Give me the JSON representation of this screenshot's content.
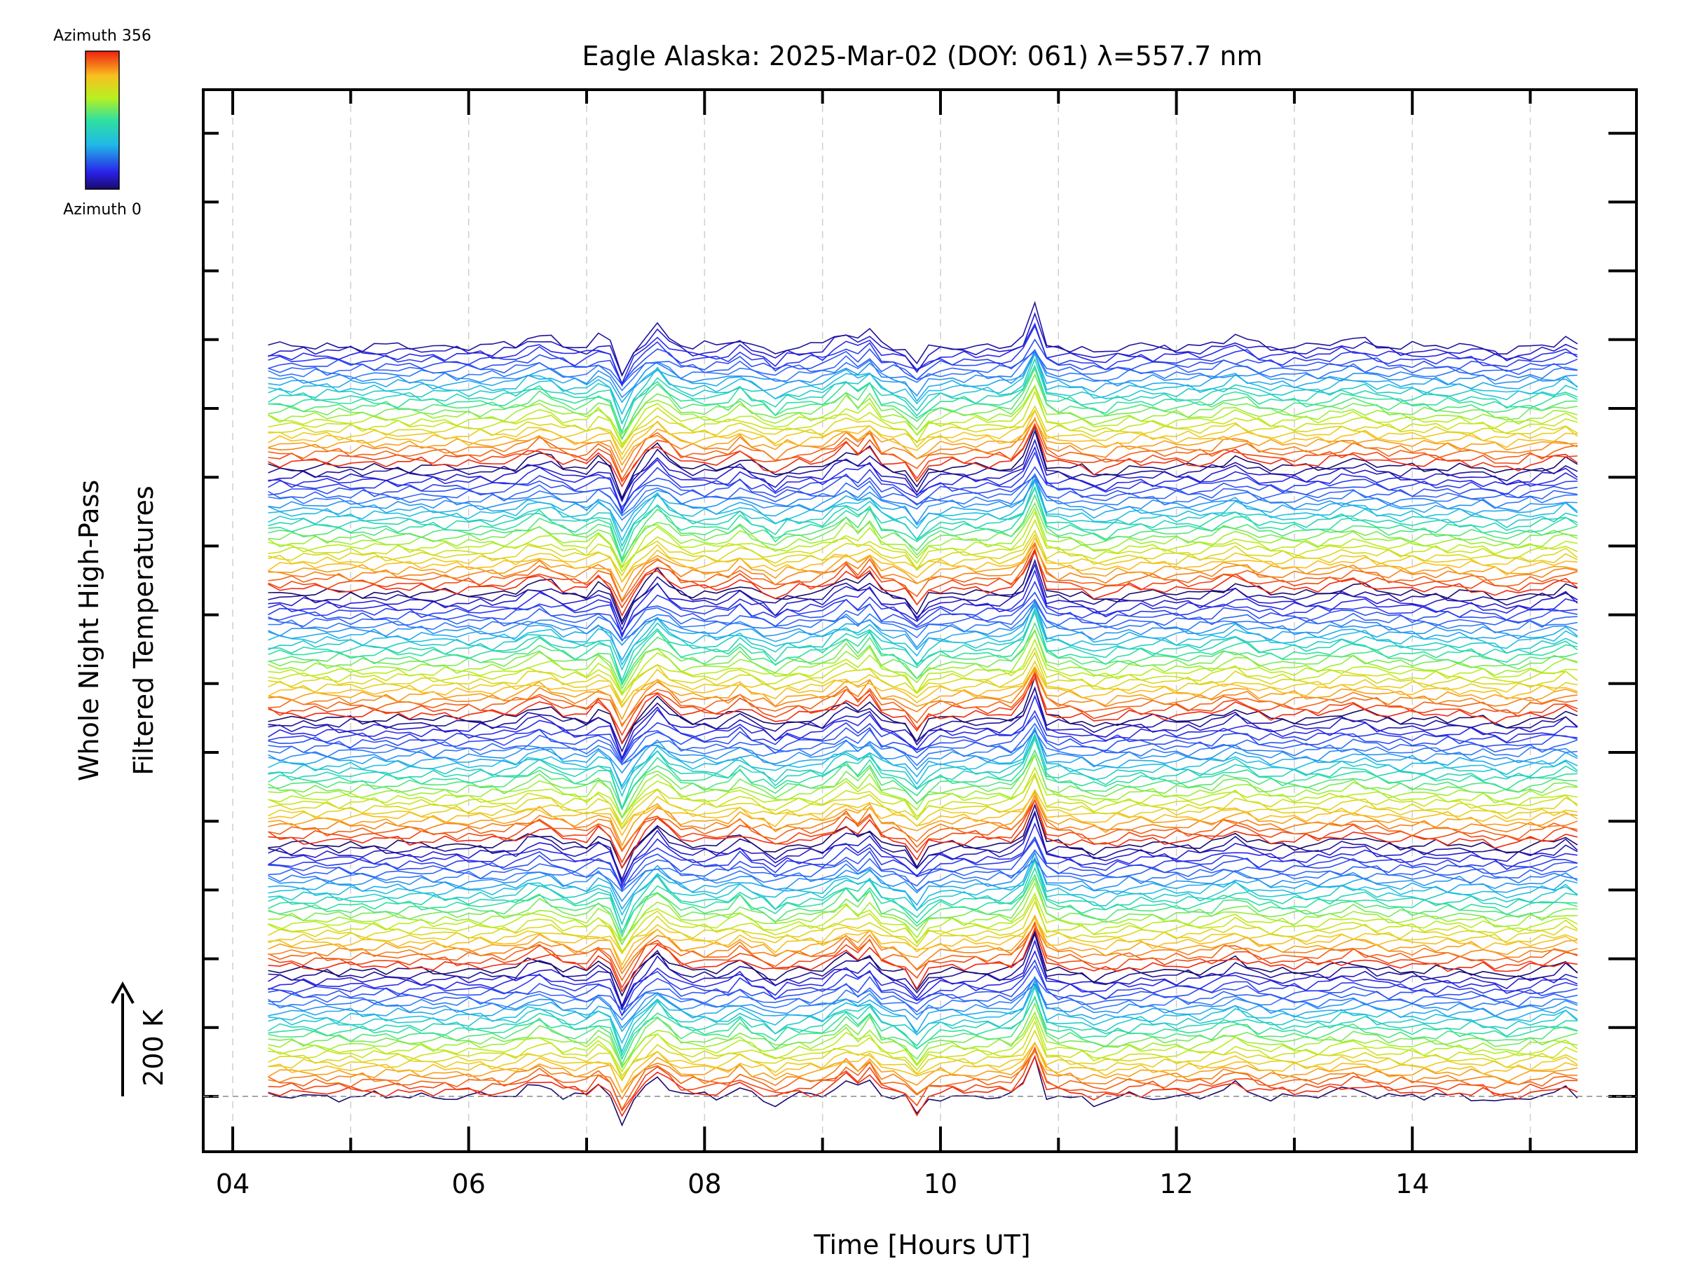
{
  "chart_data": {
    "type": "line",
    "title": "Eagle Alaska: 2025-Mar-02 (DOY: 061) λ=557.7 nm",
    "xlabel": "Time [Hours UT]",
    "ylabel_line1": "Whole Night High-Pass",
    "ylabel_line2": "Filtered Temperatures",
    "scale_label": "200 K",
    "xlim": [
      3.75,
      15.9
    ],
    "x_ticks": [
      "04",
      "06",
      "08",
      "10",
      "12",
      "14"
    ],
    "x_tick_values": [
      4,
      6,
      8,
      10,
      12,
      14
    ],
    "x_gridlines": [
      4,
      5,
      6,
      7,
      8,
      9,
      10,
      11,
      12,
      13,
      14,
      15
    ],
    "grid": "dashed vertical at each hour",
    "colorbar": {
      "label_top": "Azimuth 356",
      "label_bottom": "Azimuth 0",
      "colormap": "rainbow (blue to red)",
      "range": [
        0,
        356
      ]
    },
    "series_groups": 6,
    "traces_per_group": 27,
    "legend": "colorbar top-left"
  }
}
